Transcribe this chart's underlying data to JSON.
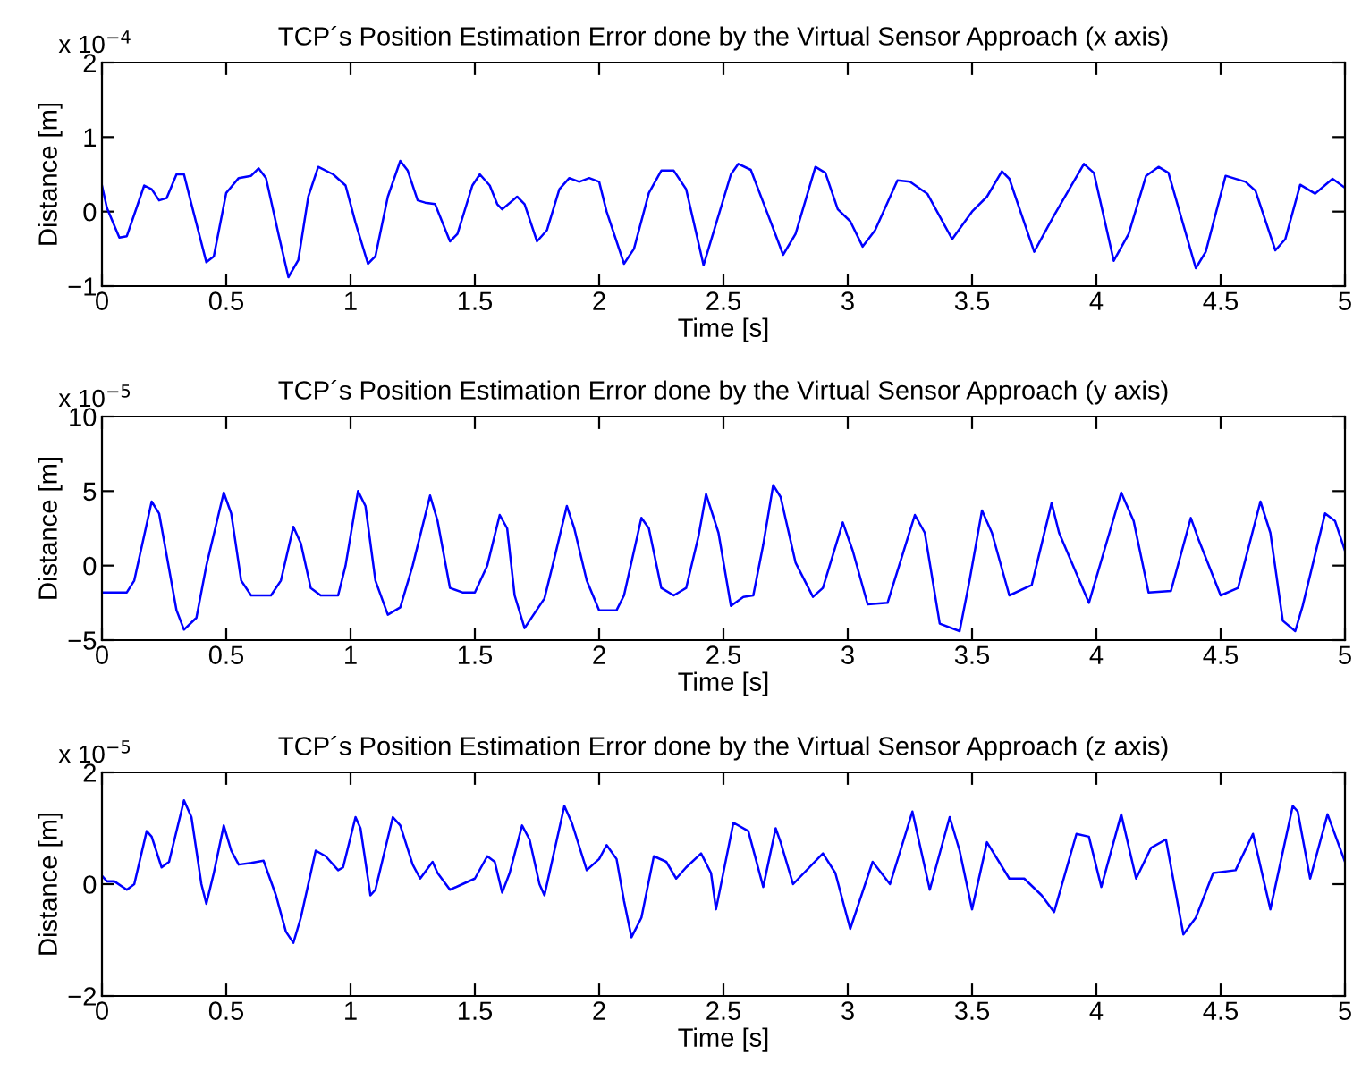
{
  "chart_data": [
    {
      "type": "line",
      "title": "TCP´s Position Estimation Error done by the Virtual Sensor Approach (x axis)",
      "xlabel": "Time [s]",
      "ylabel": "Distance [m]",
      "annotations": [
        "x 10$^{−4}$"
      ],
      "xlim": [
        0,
        5
      ],
      "ylim": [
        -1,
        2
      ],
      "xticks": [
        0,
        0.5,
        1,
        1.5,
        2,
        2.5,
        3,
        3.5,
        4,
        4.5,
        5
      ],
      "yticks": [
        -1,
        0,
        1,
        2
      ],
      "grid": false,
      "legend": false,
      "x": [
        0,
        0.02,
        0.07,
        0.1,
        0.17,
        0.2,
        0.23,
        0.26,
        0.3,
        0.33,
        0.36,
        0.42,
        0.45,
        0.5,
        0.55,
        0.6,
        0.63,
        0.66,
        0.71,
        0.75,
        0.79,
        0.83,
        0.87,
        0.93,
        0.98,
        1.02,
        1.07,
        1.1,
        1.15,
        1.2,
        1.23,
        1.27,
        1.3,
        1.34,
        1.4,
        1.43,
        1.49,
        1.52,
        1.56,
        1.59,
        1.61,
        1.67,
        1.7,
        1.75,
        1.79,
        1.84,
        1.88,
        1.92,
        1.96,
        2.0,
        2.03,
        2.1,
        2.14,
        2.2,
        2.25,
        2.3,
        2.35,
        2.42,
        2.53,
        2.56,
        2.61,
        2.68,
        2.74,
        2.79,
        2.87,
        2.91,
        2.96,
        3.01,
        3.06,
        3.11,
        3.2,
        3.25,
        3.32,
        3.42,
        3.5,
        3.56,
        3.62,
        3.65,
        3.75,
        3.83,
        3.95,
        3.99,
        4.07,
        4.13,
        4.2,
        4.25,
        4.29,
        4.4,
        4.44,
        4.52,
        4.6,
        4.64,
        4.72,
        4.76,
        4.82,
        4.88,
        4.95,
        5.0
      ],
      "series": [
        {
          "color": "#0000ff",
          "values": [
            0.35,
            0.05,
            -0.35,
            -0.33,
            0.35,
            0.3,
            0.15,
            0.18,
            0.5,
            0.5,
            0.1,
            -0.68,
            -0.6,
            0.25,
            0.45,
            0.48,
            0.58,
            0.45,
            -0.3,
            -0.88,
            -0.65,
            0.2,
            0.6,
            0.5,
            0.35,
            -0.15,
            -0.7,
            -0.6,
            0.2,
            0.68,
            0.55,
            0.15,
            0.12,
            0.1,
            -0.4,
            -0.3,
            0.35,
            0.5,
            0.35,
            0.1,
            0.03,
            0.2,
            0.1,
            -0.4,
            -0.25,
            0.3,
            0.45,
            0.4,
            0.45,
            0.4,
            0.0,
            -0.7,
            -0.5,
            0.25,
            0.55,
            0.55,
            0.3,
            -0.72,
            0.5,
            0.64,
            0.56,
            -0.05,
            -0.58,
            -0.3,
            0.6,
            0.52,
            0.03,
            -0.13,
            -0.47,
            -0.25,
            0.42,
            0.4,
            0.24,
            -0.37,
            0.0,
            0.2,
            0.54,
            0.44,
            -0.54,
            -0.05,
            0.64,
            0.52,
            -0.66,
            -0.3,
            0.48,
            0.6,
            0.52,
            -0.76,
            -0.54,
            0.48,
            0.4,
            0.28,
            -0.52,
            -0.37,
            0.36,
            0.24,
            0.44,
            0.32
          ]
        }
      ]
    },
    {
      "type": "line",
      "title": "TCP´s Position Estimation Error done by the Virtual Sensor Approach (y axis)",
      "xlabel": "Time [s]",
      "ylabel": "Distance [m]",
      "annotations": [
        "x 10$^{−5}$"
      ],
      "xlim": [
        0,
        5
      ],
      "ylim": [
        -5,
        10
      ],
      "xticks": [
        0,
        0.5,
        1,
        1.5,
        2,
        2.5,
        3,
        3.5,
        4,
        4.5,
        5
      ],
      "yticks": [
        -5,
        0,
        5,
        10
      ],
      "grid": false,
      "legend": false,
      "x": [
        0,
        0.07,
        0.1,
        0.13,
        0.2,
        0.23,
        0.3,
        0.33,
        0.38,
        0.42,
        0.49,
        0.52,
        0.56,
        0.6,
        0.68,
        0.72,
        0.77,
        0.8,
        0.84,
        0.88,
        0.95,
        0.98,
        1.03,
        1.06,
        1.1,
        1.15,
        1.2,
        1.25,
        1.32,
        1.35,
        1.4,
        1.45,
        1.5,
        1.55,
        1.6,
        1.63,
        1.66,
        1.7,
        1.78,
        1.82,
        1.87,
        1.9,
        1.95,
        2.0,
        2.07,
        2.1,
        2.17,
        2.2,
        2.25,
        2.3,
        2.35,
        2.4,
        2.43,
        2.48,
        2.53,
        2.58,
        2.62,
        2.66,
        2.7,
        2.73,
        2.79,
        2.86,
        2.9,
        2.98,
        3.02,
        3.08,
        3.16,
        3.27,
        3.31,
        3.37,
        3.45,
        3.49,
        3.54,
        3.58,
        3.65,
        3.74,
        3.82,
        3.85,
        3.97,
        4.1,
        4.15,
        4.21,
        4.3,
        4.38,
        4.41,
        4.5,
        4.57,
        4.66,
        4.7,
        4.75,
        4.8,
        4.83,
        4.92,
        4.96,
        5.0
      ],
      "series": [
        {
          "color": "#0000ff",
          "values": [
            -1.8,
            -1.8,
            -1.8,
            -1,
            4.3,
            3.5,
            -3,
            -4.3,
            -3.5,
            0,
            4.9,
            3.5,
            -1,
            -2,
            -2,
            -1,
            2.6,
            1.5,
            -1.5,
            -2,
            -2,
            0,
            5.0,
            4,
            -1,
            -3.3,
            -2.8,
            0,
            4.7,
            3,
            -1.5,
            -1.8,
            -1.8,
            0,
            3.4,
            2.5,
            -2,
            -4.2,
            -2.2,
            0.5,
            4.0,
            2.5,
            -1,
            -3,
            -3,
            -2,
            3.2,
            2.5,
            -1.5,
            -2,
            -1.5,
            2,
            4.8,
            2.2,
            -2.7,
            -2.1,
            -2,
            1.4,
            5.4,
            4.6,
            0.2,
            -2.1,
            -1.5,
            2.9,
            1,
            -2.6,
            -2.5,
            3.4,
            2.2,
            -3.9,
            -4.4,
            -1,
            3.7,
            2.2,
            -2,
            -1.3,
            4.2,
            2.2,
            -2.5,
            4.9,
            3,
            -1.8,
            -1.7,
            3.2,
            1.8,
            -2,
            -1.5,
            4.3,
            2.2,
            -3.7,
            -4.4,
            -2.7,
            3.5,
            3,
            1
          ]
        }
      ]
    },
    {
      "type": "line",
      "title": "TCP´s Position Estimation Error done by the Virtual Sensor Approach (z axis)",
      "xlabel": "Time [s]",
      "ylabel": "Distance [m]",
      "annotations": [
        "x 10$^{−5}$"
      ],
      "xlim": [
        0,
        5
      ],
      "ylim": [
        -2,
        2
      ],
      "xticks": [
        0,
        0.5,
        1,
        1.5,
        2,
        2.5,
        3,
        3.5,
        4,
        4.5,
        5
      ],
      "yticks": [
        -2,
        0,
        2
      ],
      "grid": false,
      "legend": false,
      "x": [
        0,
        0.02,
        0.05,
        0.1,
        0.13,
        0.18,
        0.2,
        0.24,
        0.27,
        0.33,
        0.36,
        0.4,
        0.42,
        0.45,
        0.49,
        0.52,
        0.55,
        0.6,
        0.65,
        0.7,
        0.74,
        0.77,
        0.8,
        0.86,
        0.9,
        0.95,
        0.97,
        1.02,
        1.04,
        1.08,
        1.1,
        1.17,
        1.2,
        1.25,
        1.28,
        1.33,
        1.35,
        1.4,
        1.45,
        1.5,
        1.55,
        1.58,
        1.61,
        1.64,
        1.69,
        1.72,
        1.76,
        1.78,
        1.82,
        1.86,
        1.89,
        1.95,
        2.0,
        2.03,
        2.07,
        2.1,
        2.13,
        2.17,
        2.22,
        2.27,
        2.31,
        2.35,
        2.41,
        2.45,
        2.47,
        2.54,
        2.6,
        2.66,
        2.71,
        2.73,
        2.78,
        2.9,
        2.95,
        3.01,
        3.1,
        3.17,
        3.26,
        3.3,
        3.33,
        3.41,
        3.45,
        3.5,
        3.56,
        3.65,
        3.71,
        3.78,
        3.83,
        3.92,
        3.97,
        4.02,
        4.1,
        4.16,
        4.22,
        4.28,
        4.35,
        4.4,
        4.47,
        4.56,
        4.63,
        4.7,
        4.79,
        4.81,
        4.86,
        4.93,
        5.0
      ],
      "series": [
        {
          "color": "#0000ff",
          "values": [
            0.15,
            0.05,
            0.05,
            -0.1,
            0,
            0.95,
            0.85,
            0.3,
            0.4,
            1.5,
            1.2,
            0,
            -0.35,
            0.2,
            1.05,
            0.6,
            0.35,
            0.38,
            0.42,
            -0.2,
            -0.85,
            -1.05,
            -0.6,
            0.6,
            0.5,
            0.25,
            0.3,
            1.2,
            1.0,
            -0.2,
            -0.1,
            1.2,
            1.05,
            0.35,
            0.1,
            0.4,
            0.2,
            -0.1,
            0,
            0.1,
            0.5,
            0.4,
            -0.15,
            0.2,
            1.05,
            0.8,
            0,
            -0.2,
            0.6,
            1.4,
            1.1,
            0.25,
            0.45,
            0.7,
            0.45,
            -0.3,
            -0.95,
            -0.6,
            0.5,
            0.4,
            0.1,
            0.3,
            0.55,
            0.2,
            -0.45,
            1.1,
            0.95,
            -0.05,
            1.0,
            0.75,
            0,
            0.55,
            0.2,
            -0.8,
            0.4,
            0,
            1.3,
            0.5,
            -0.1,
            1.2,
            0.6,
            -0.45,
            0.75,
            0.1,
            0.1,
            -0.2,
            -0.5,
            0.9,
            0.85,
            -0.05,
            1.25,
            0.1,
            0.65,
            0.8,
            -0.9,
            -0.6,
            0.2,
            0.25,
            0.9,
            -0.45,
            1.4,
            1.3,
            0.1,
            1.25,
            0.4
          ]
        }
      ]
    }
  ]
}
